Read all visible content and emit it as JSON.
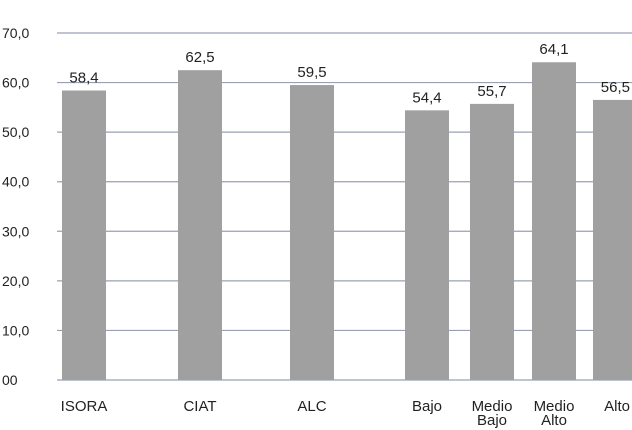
{
  "chart_data": {
    "type": "bar",
    "title": "",
    "xlabel": "",
    "ylabel": "",
    "ylim": [
      0,
      70
    ],
    "y_ticks": [
      "00",
      "10,0",
      "20,0",
      "30,0",
      "40,0",
      "50,0",
      "60,0",
      "70,0"
    ],
    "grid": true,
    "colors": {
      "bar": "#a0a0a0",
      "grid": "#9aa0b4",
      "text": "#222222"
    },
    "categories": [
      [
        "ISORA"
      ],
      [
        "CIAT"
      ],
      [
        "ALC"
      ],
      [
        "Bajo"
      ],
      [
        "Medio",
        "Bajo"
      ],
      [
        "Medio",
        "Alto"
      ],
      [
        "Alto"
      ]
    ],
    "values": [
      58.4,
      62.5,
      59.5,
      54.4,
      55.7,
      64.1,
      56.5
    ],
    "value_labels": [
      "58,4",
      "62,5",
      "59,5",
      "54,4",
      "55,7",
      "64,1",
      "56,5"
    ]
  }
}
